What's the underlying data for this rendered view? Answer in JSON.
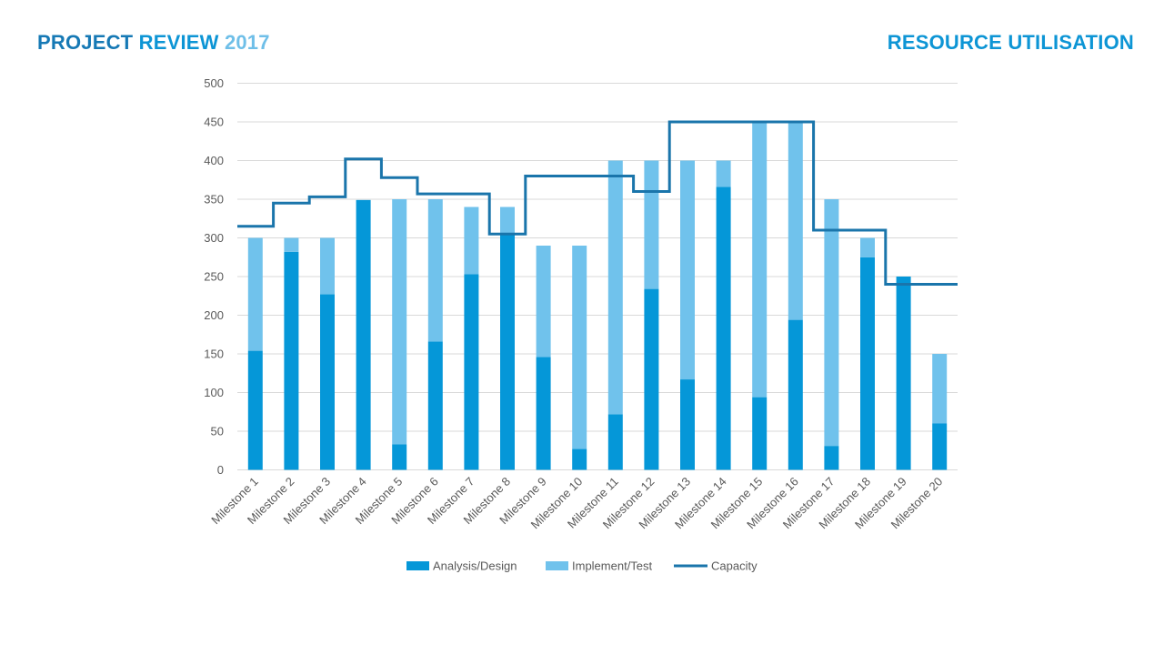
{
  "slide": {
    "title_part1": "PROJECT",
    "title_part2": "REVIEW",
    "title_part3": "2017",
    "section_title": "RESOURCE UTILISATION"
  },
  "colors": {
    "analysis": "#0597d8",
    "implement": "#70c2ec",
    "capacity": "#1a75ab",
    "grid": "#d9d9d9",
    "axis_text": "#595959"
  },
  "chart_data": {
    "type": "bar",
    "stacked": true,
    "title": "",
    "xlabel": "",
    "ylabel": "",
    "ylim": [
      0,
      500
    ],
    "yticks": [
      0,
      50,
      100,
      150,
      200,
      250,
      300,
      350,
      400,
      450,
      500
    ],
    "grid": true,
    "legend_position": "bottom",
    "categories": [
      "Milestone 1",
      "Milestone 2",
      "Milestone 3",
      "Milestone 4",
      "Milestone 5",
      "Milestone 6",
      "Milestone 7",
      "Milestone 8",
      "Milestone 9",
      "Milestone 10",
      "Milestone 11",
      "Milestone 12",
      "Milestone 13",
      "Milestone 14",
      "Milestone 15",
      "Milestone 16",
      "Milestone 17",
      "Milestone 18",
      "Milestone 19",
      "Milestone 20"
    ],
    "series": [
      {
        "name": "Analysis/Design",
        "kind": "bar",
        "values": [
          154,
          282,
          227,
          349,
          33,
          166,
          253,
          305,
          146,
          27,
          72,
          234,
          117,
          366,
          94,
          194,
          31,
          275,
          250,
          60
        ]
      },
      {
        "name": "Implement/Test",
        "kind": "bar",
        "values": [
          146,
          18,
          73,
          0,
          317,
          184,
          87,
          35,
          144,
          263,
          328,
          166,
          283,
          34,
          356,
          256,
          319,
          25,
          0,
          90
        ]
      },
      {
        "name": "Capacity",
        "kind": "step-line",
        "values": [
          315,
          345,
          353,
          402,
          378,
          357,
          357,
          305,
          380,
          380,
          380,
          360,
          450,
          450,
          450,
          450,
          310,
          310,
          240,
          240
        ]
      }
    ]
  }
}
